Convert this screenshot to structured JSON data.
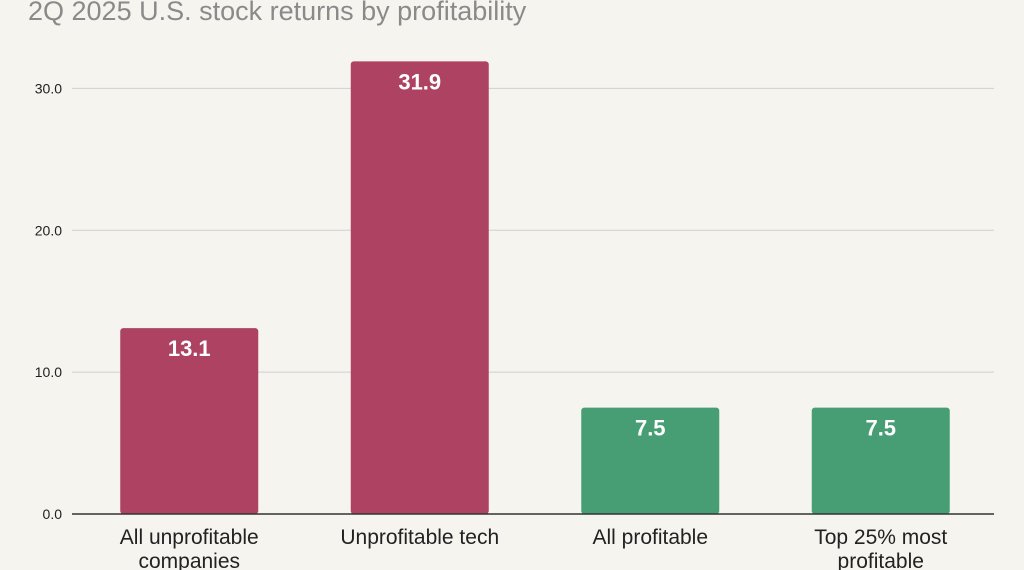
{
  "chart_data": {
    "type": "bar",
    "title": "2Q 2025 U.S. stock returns by profitability",
    "categories": [
      [
        "All unprofitable",
        "companies"
      ],
      [
        "Unprofitable tech"
      ],
      [
        "All profitable"
      ],
      [
        "Top 25% most",
        "profitable"
      ]
    ],
    "values": [
      13.1,
      31.9,
      7.5,
      7.5
    ],
    "data_labels": [
      "13.1",
      "31.9",
      "7.5",
      "7.5"
    ],
    "bar_colors": [
      "#ad4262",
      "#ad4262",
      "#489e74",
      "#489e74"
    ],
    "yticks": [
      "0.0",
      "10.0",
      "20.0",
      "30.0"
    ],
    "ytick_values": [
      0,
      10,
      20,
      30
    ],
    "ylim": [
      0,
      32
    ],
    "xlabel": "",
    "ylabel": "",
    "grid": true,
    "legend": "none"
  }
}
